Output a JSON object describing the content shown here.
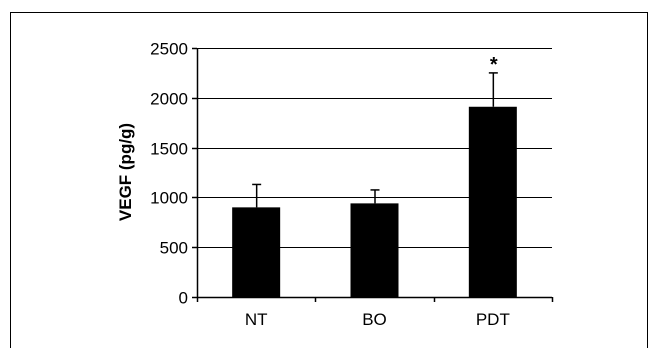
{
  "chart_data": {
    "type": "bar",
    "categories": [
      "NT",
      "BO",
      "PDT"
    ],
    "values": [
      900,
      940,
      1910
    ],
    "errors": [
      230,
      135,
      340
    ],
    "annotations": [
      "",
      "",
      "*"
    ],
    "title": "",
    "xlabel": "",
    "ylabel": "VEGF (pg/g)",
    "ylim": [
      0,
      2500
    ],
    "yticks": [
      "0",
      "500",
      "1000",
      "1500",
      "2000",
      "2500"
    ],
    "grid": true,
    "legend": "none",
    "bar_color": "#000000"
  }
}
